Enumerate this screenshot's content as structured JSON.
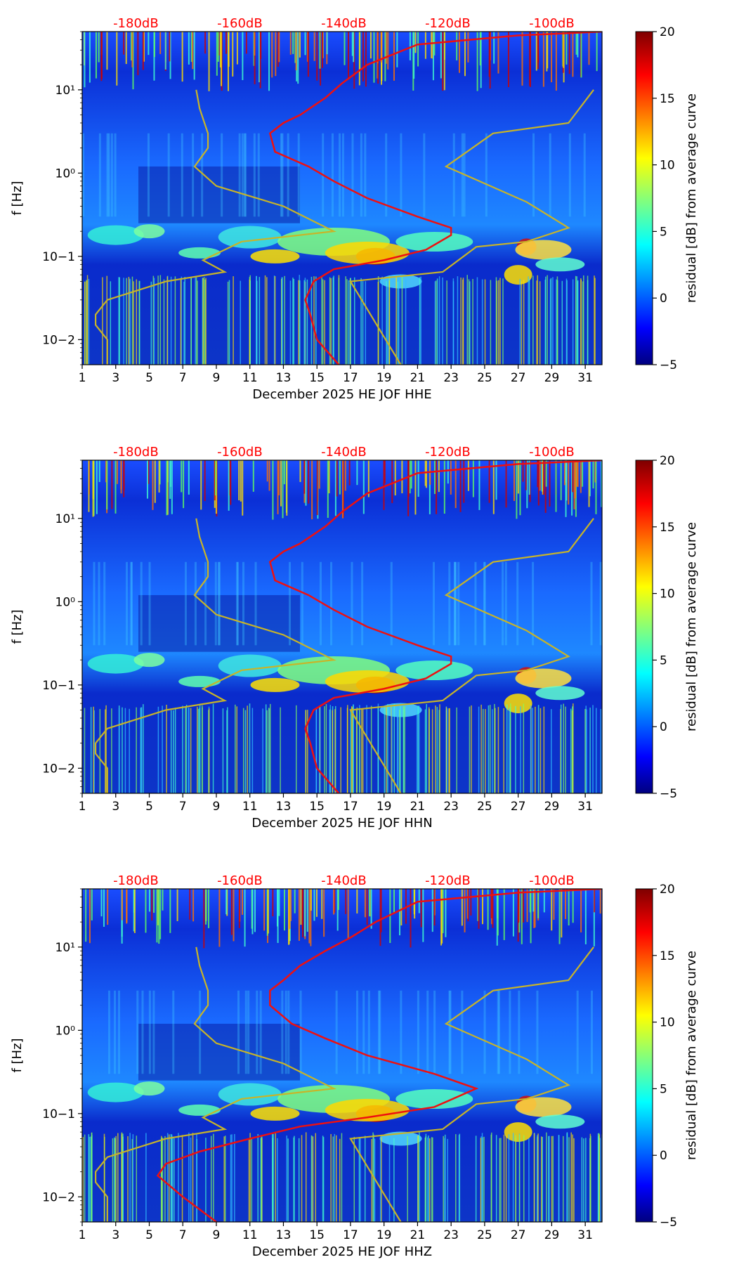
{
  "chart_data": [
    {
      "type": "heatmap",
      "xlabel": "December 2025 HE JOF  HHE",
      "ylabel": "f [Hz]",
      "x_ticks": [
        "1",
        "3",
        "5",
        "7",
        "9",
        "11",
        "13",
        "15",
        "17",
        "19",
        "21",
        "23",
        "25",
        "27",
        "29",
        "31"
      ],
      "y_ticks": [
        "10−2",
        "10−1",
        "10⁰",
        "10¹"
      ],
      "db_labels": [
        "-180dB",
        "-160dB",
        "-140dB",
        "-120dB",
        "-100dB"
      ],
      "colorbar": {
        "label": "residual [dB] from average curve",
        "ticks": [
          "20",
          "15",
          "10",
          "5",
          "0",
          "−5"
        ],
        "range": [
          -5,
          20
        ]
      },
      "xlim": [
        1,
        32
      ],
      "ylim": [
        0.005,
        50
      ]
    },
    {
      "type": "heatmap",
      "xlabel": "December 2025 HE JOF  HHN",
      "ylabel": "f [Hz]",
      "x_ticks": [
        "1",
        "3",
        "5",
        "7",
        "9",
        "11",
        "13",
        "15",
        "17",
        "19",
        "21",
        "23",
        "25",
        "27",
        "29",
        "31"
      ],
      "y_ticks": [
        "10−2",
        "10−1",
        "10⁰",
        "10¹"
      ],
      "db_labels": [
        "-180dB",
        "-160dB",
        "-140dB",
        "-120dB",
        "-100dB"
      ],
      "colorbar": {
        "label": "residual [dB] from average curve",
        "ticks": [
          "20",
          "15",
          "10",
          "5",
          "0",
          "−5"
        ],
        "range": [
          -5,
          20
        ]
      },
      "xlim": [
        1,
        32
      ],
      "ylim": [
        0.005,
        50
      ]
    },
    {
      "type": "heatmap",
      "xlabel": "December 2025 HE JOF  HHZ",
      "ylabel": "f [Hz]",
      "x_ticks": [
        "1",
        "3",
        "5",
        "7",
        "9",
        "11",
        "13",
        "15",
        "17",
        "19",
        "21",
        "23",
        "25",
        "27",
        "29",
        "31"
      ],
      "y_ticks": [
        "10−2",
        "10−1",
        "10⁰",
        "10¹"
      ],
      "db_labels": [
        "-180dB",
        "-160dB",
        "-140dB",
        "-120dB",
        "-100dB"
      ],
      "colorbar": {
        "label": "residual [dB] from average curve",
        "ticks": [
          "20",
          "15",
          "10",
          "5",
          "0",
          "−5"
        ],
        "range": [
          -5,
          20
        ]
      },
      "xlim": [
        1,
        32
      ],
      "ylim": [
        0.005,
        50
      ]
    }
  ]
}
